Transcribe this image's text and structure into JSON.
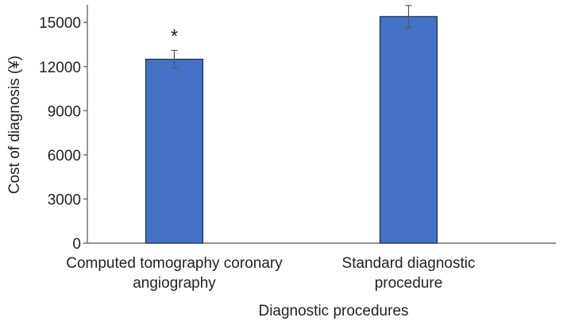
{
  "chart_data": {
    "type": "bar",
    "title": "",
    "xlabel": "Diagnostic procedures",
    "ylabel": "Cost of diagnosis (¥)",
    "ylim": [
      0,
      16200
    ],
    "yticks": [
      0,
      3000,
      6000,
      9000,
      12000,
      15000
    ],
    "ytick_labels": [
      "0",
      "3000",
      "6000",
      "9000",
      "12000",
      "15000"
    ],
    "categories": [
      [
        "Computed tomography coronary",
        "angiography"
      ],
      [
        "Standard diagnostic",
        "procedure"
      ]
    ],
    "values": [
      12500,
      15400
    ],
    "error": [
      600,
      750
    ],
    "annotations": [
      "*",
      ""
    ],
    "grid": false,
    "colors": {
      "bar_fill": "#4472c4",
      "bar_stroke": "#1f2f5c",
      "axis": "#555555",
      "error_bar": "#555555"
    }
  }
}
